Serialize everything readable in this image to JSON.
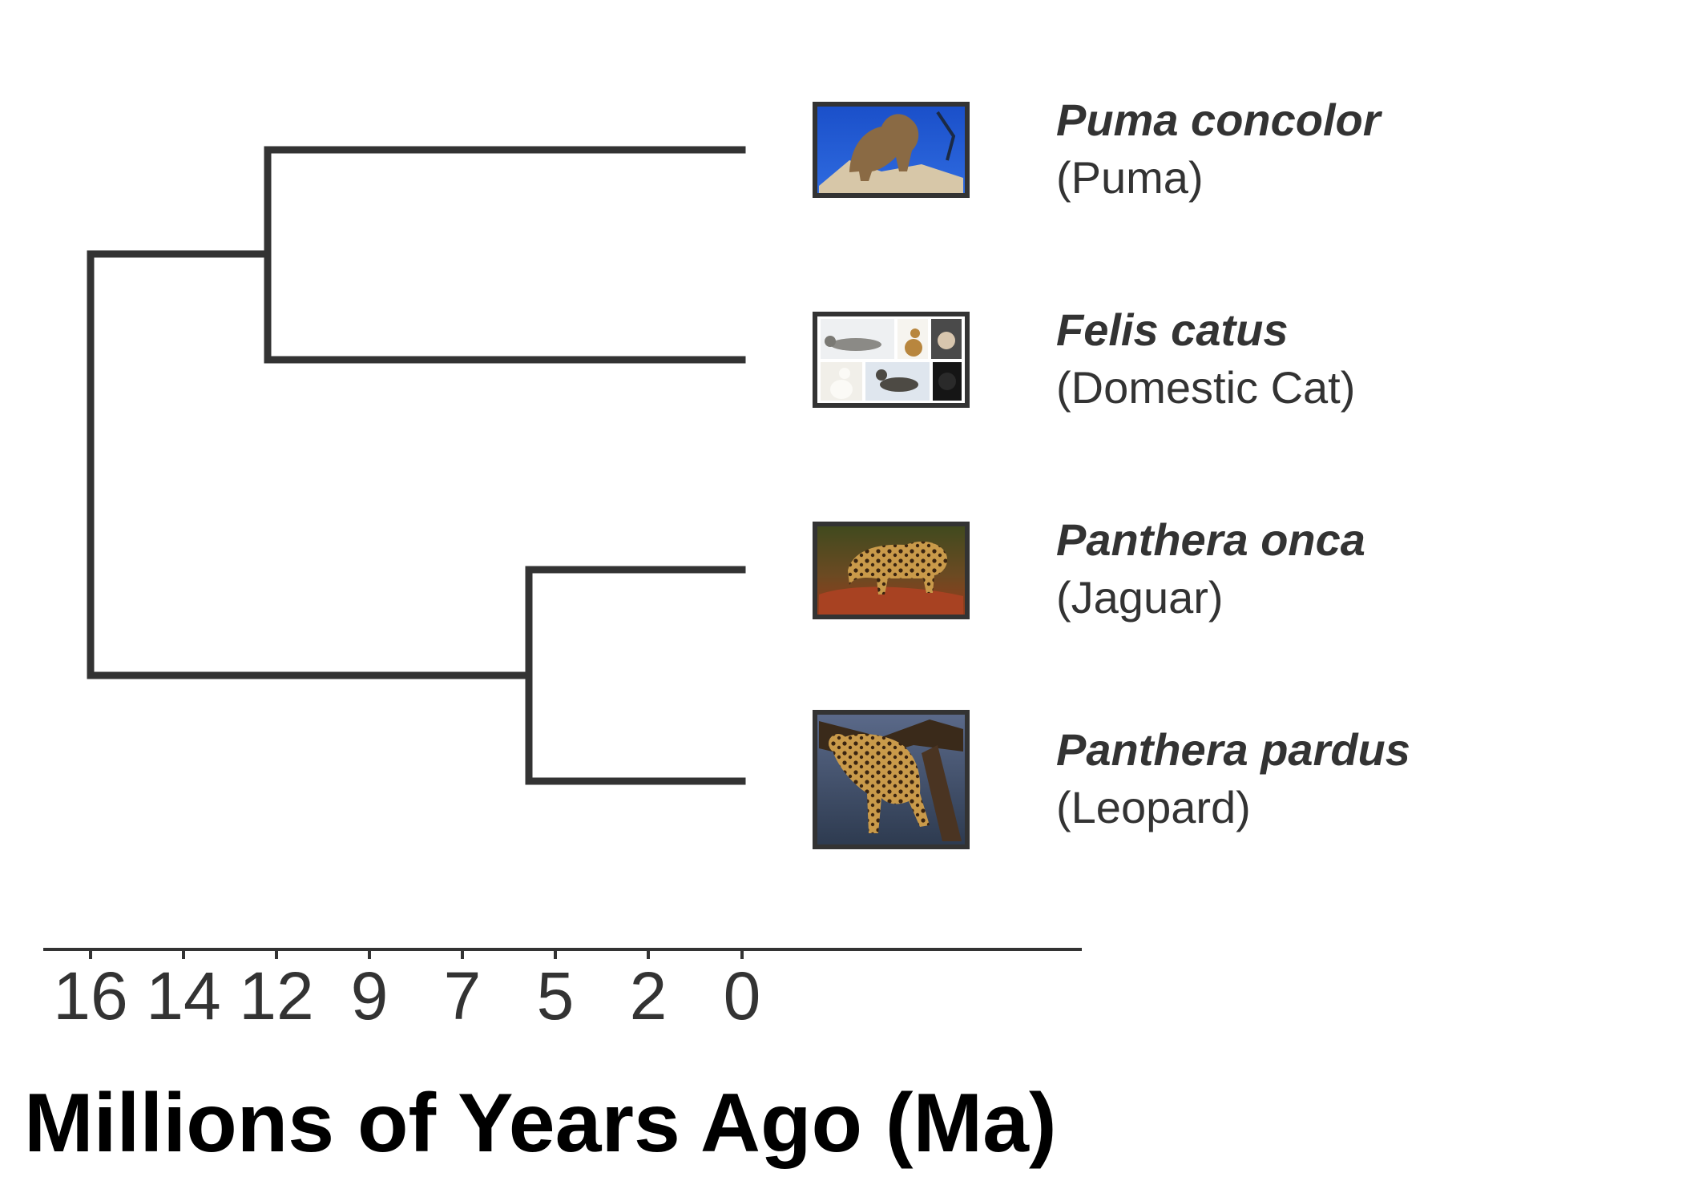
{
  "colors": {
    "line": "#333333",
    "text": "#333333",
    "title": "#000000",
    "background": "#ffffff"
  },
  "axis": {
    "title": "Millions of Years Ago (Ma)",
    "ticks": [
      "16",
      "14",
      "12",
      "9",
      "7",
      "5",
      "2",
      "0"
    ]
  },
  "tree": {
    "root_age": 16,
    "nodes": [
      {
        "id": "root",
        "age": 16
      },
      {
        "id": "puma-felis",
        "age": 12
      },
      {
        "id": "panthera",
        "age": 5.6
      }
    ],
    "taxa": [
      {
        "scientific": "Puma concolor",
        "common": "(Puma)",
        "icon": "puma-photo-icon",
        "parent": "puma-felis"
      },
      {
        "scientific": "Felis catus",
        "common": "(Domestic Cat)",
        "icon": "domestic-cat-photo-collage-icon",
        "parent": "puma-felis"
      },
      {
        "scientific": "Panthera onca",
        "common": "(Jaguar)",
        "icon": "jaguar-photo-icon",
        "parent": "panthera"
      },
      {
        "scientific": "Panthera pardus",
        "common": "(Leopard)",
        "icon": "leopard-photo-icon",
        "parent": "panthera"
      }
    ]
  }
}
